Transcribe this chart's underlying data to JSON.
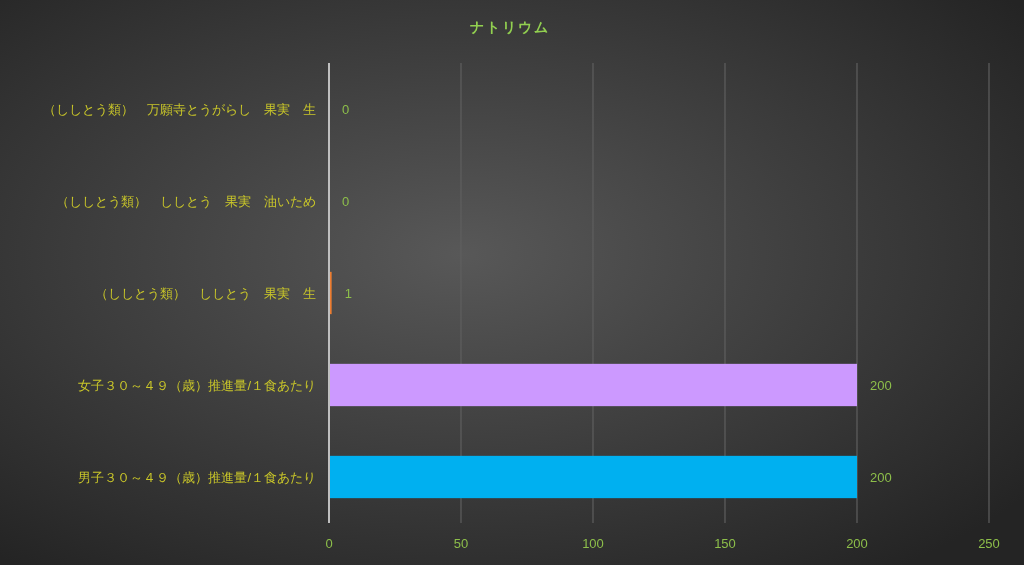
{
  "chart_data": {
    "type": "bar",
    "orientation": "horizontal",
    "title": "ナトリウム",
    "categories": [
      "（ししとう類）　万願寺とうがらし　果実　生",
      "（ししとう類）　ししとう　果実　油いため",
      "（ししとう類）　ししとう　果実　生",
      "女子３０～４９（歳）推進量/１食あたり",
      "男子３０～４９（歳）推進量/１食あたり"
    ],
    "values": [
      0,
      0,
      1,
      200,
      200
    ],
    "colors": [
      "#5b9bd5",
      "#a5a5a5",
      "#ed7d31",
      "#cc99ff",
      "#00b0f0"
    ],
    "xlim": [
      0,
      250
    ],
    "xticks": [
      0,
      50,
      100,
      150,
      200,
      250
    ],
    "grid": "x",
    "data_labels": true
  }
}
